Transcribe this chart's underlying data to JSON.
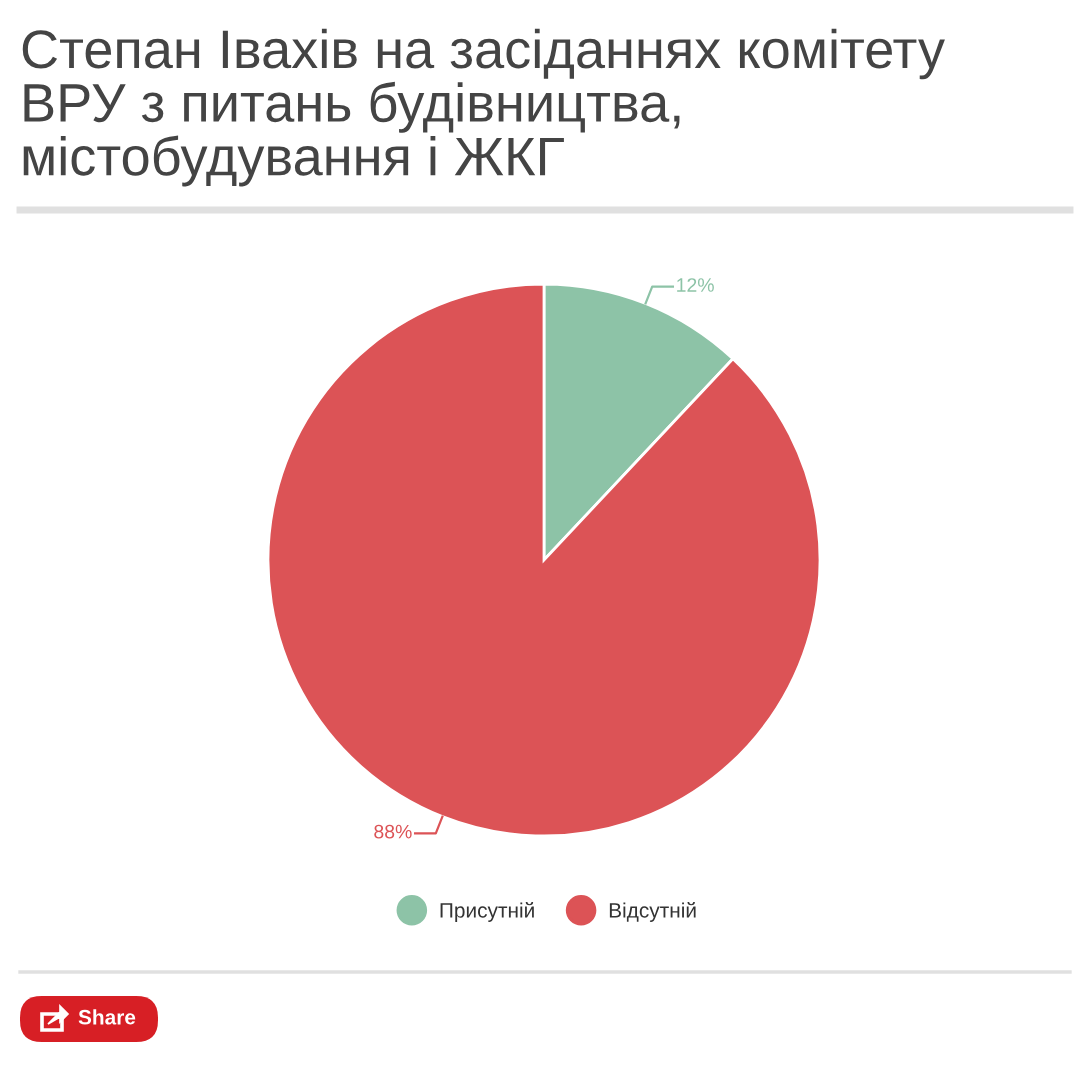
{
  "chart_data": {
    "type": "pie",
    "title": "Степан Івахів на засіданнях комітету ВРУ з питань будівництва, містобудування і ЖКГ",
    "categories": [
      "Присутній",
      "Відсутній"
    ],
    "values": [
      12,
      88
    ],
    "colors": [
      "#8dc3a7",
      "#dc5356"
    ],
    "value_labels": [
      "12%",
      "88%"
    ],
    "legend": "bottom",
    "annotations": [
      "Share"
    ]
  }
}
